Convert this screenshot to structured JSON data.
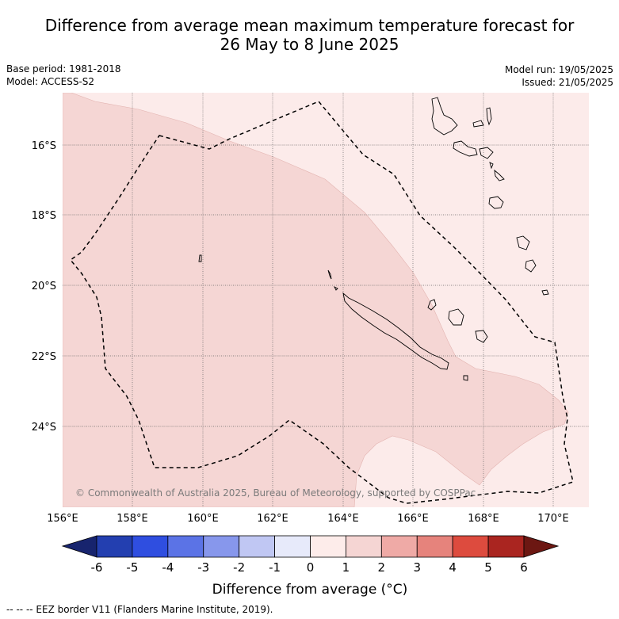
{
  "title_line1": "Difference from average mean maximum temperature forecast for",
  "title_line2": "26 May to 8 June 2025",
  "base_period": "Base period: 1981-2018",
  "model": "Model: ACCESS-S2",
  "model_run": "Model run: 19/05/2025",
  "issued": "Issued: 21/05/2025",
  "copyright": "© Commonwealth of Australia 2025, Bureau of Meteorology, supported by COSPPac",
  "lat_labels": [
    "16°S",
    "18°S",
    "20°S",
    "22°S",
    "24°S"
  ],
  "lon_labels": [
    "156°E",
    "158°E",
    "160°E",
    "162°E",
    "164°E",
    "166°E",
    "168°E",
    "170°E"
  ],
  "colorbar": {
    "title": "Difference from average (°C)",
    "tick_labels": [
      "-6",
      "-5",
      "-4",
      "-3",
      "-2",
      "-1",
      "0",
      "1",
      "2",
      "3",
      "4",
      "5",
      "6"
    ],
    "colors": [
      "#17246e",
      "#233fb0",
      "#2f4ee0",
      "#5b73e6",
      "#8797ec",
      "#c0c7f3",
      "#e7eafa",
      "#fdecea",
      "#f5d5d3",
      "#efaaa6",
      "#e6837c",
      "#dd4b3e",
      "#aa2520",
      "#6c1712"
    ]
  },
  "legend_note": "--  --  -- EEZ border V11 (Flanders Marine Institute, 2019).",
  "map_colors": {
    "anomaly_0_to_1": "#fcebea",
    "anomaly_1_to_2": "#f5d6d4",
    "coastline": "#000000",
    "eez_border": "#000000",
    "gridline": "#666666"
  }
}
